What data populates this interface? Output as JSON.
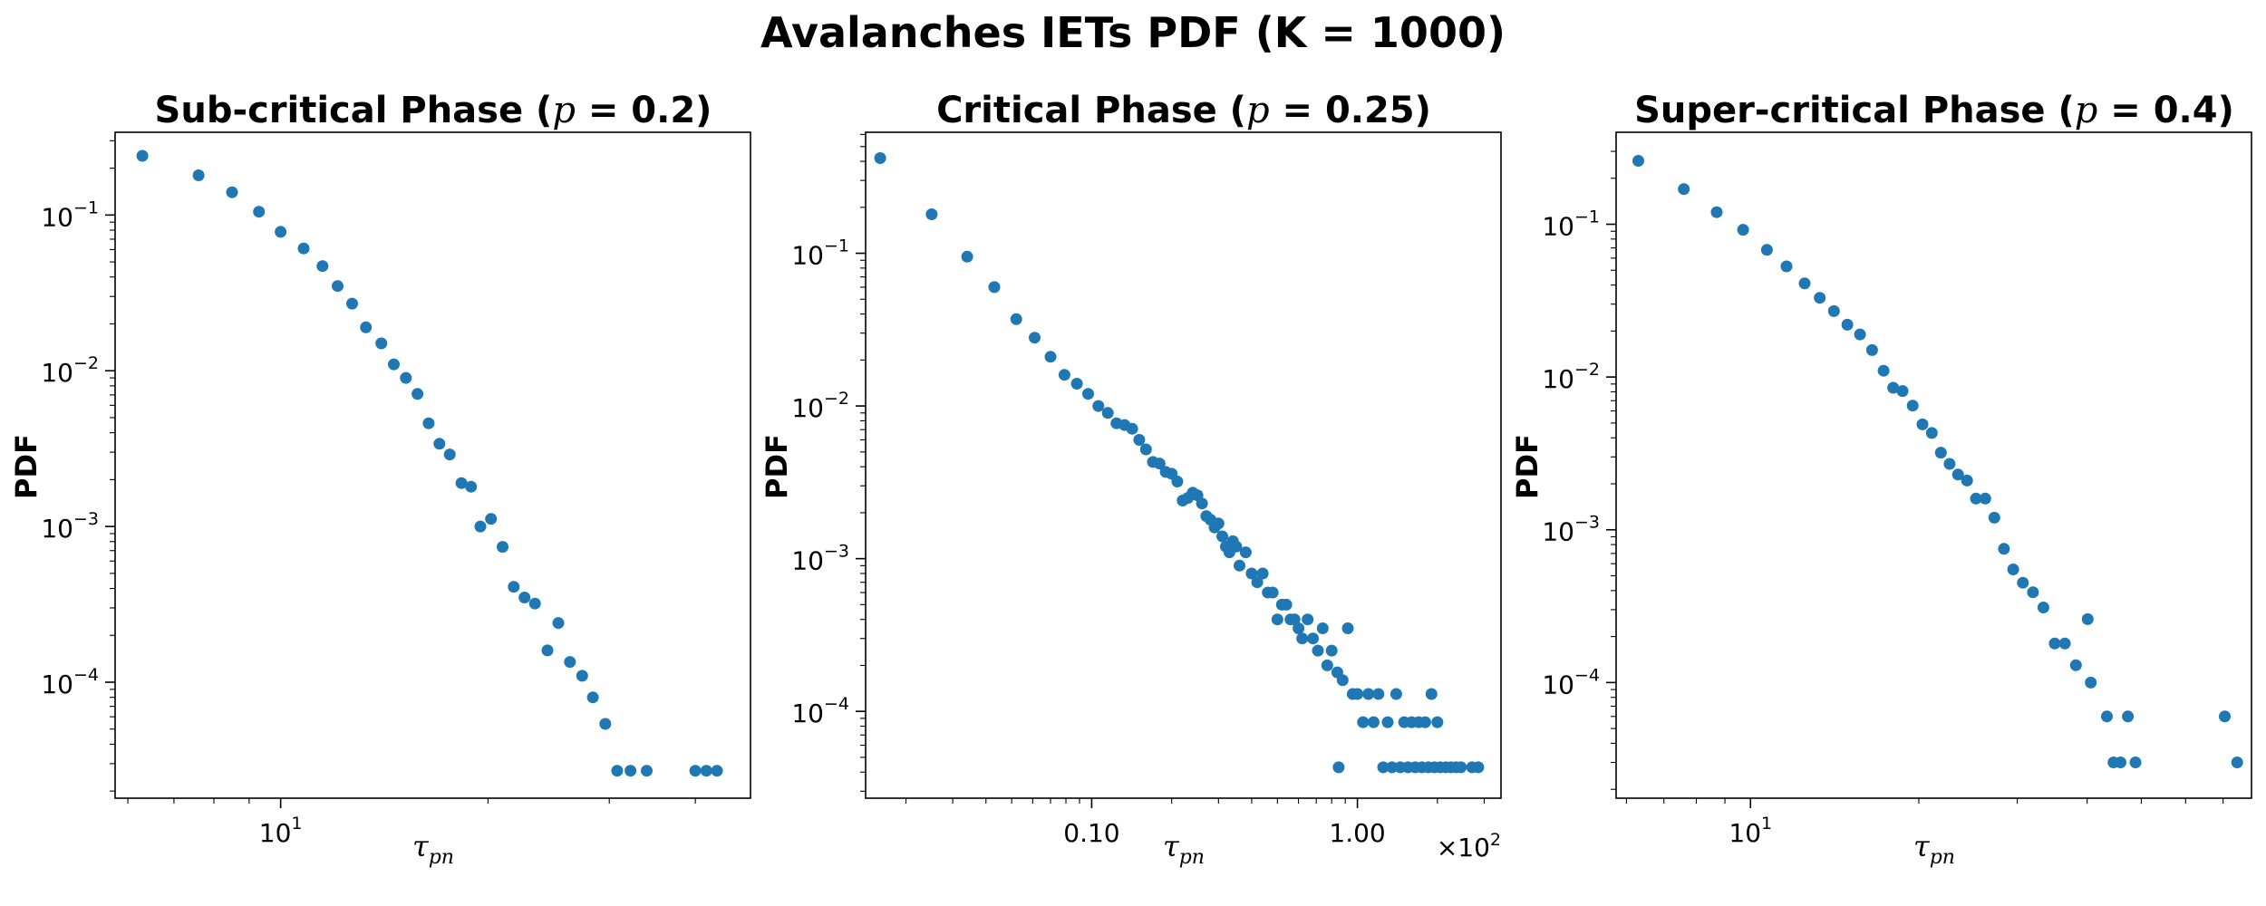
{
  "figure": {
    "suptitle": "Avalanches IETs PDF (K = 1000)"
  },
  "colors": {
    "marker": "#1f77b4",
    "axes": "#000000",
    "background": "#ffffff"
  },
  "chart_data": [
    {
      "type": "scatter",
      "id": "sub",
      "title": {
        "prefix": "Sub-critical Phase (",
        "var": "p",
        "suffix": " = 0.2)"
      },
      "xlabel": {
        "main": "τ",
        "sub": "pn"
      },
      "ylabel": "PDF",
      "xscale": "log",
      "yscale": "log",
      "xlim": [
        5.75,
        48.1
      ],
      "ylim": [
        1.8e-05,
        0.34
      ],
      "xticks": [
        {
          "value": 10,
          "label": {
            "base": "10",
            "exp": "1"
          }
        }
      ],
      "yticks": [
        {
          "value": 0.1,
          "label": {
            "base": "10",
            "exp": "−1"
          }
        },
        {
          "value": 0.01,
          "label": {
            "base": "10",
            "exp": "−2"
          }
        },
        {
          "value": 0.001,
          "label": {
            "base": "10",
            "exp": "−3"
          }
        },
        {
          "value": 0.0001,
          "label": {
            "base": "10",
            "exp": "−4"
          }
        }
      ],
      "x": [
        6.3,
        7.6,
        8.5,
        9.3,
        10,
        10.8,
        11.5,
        12.1,
        12.7,
        13.3,
        14,
        14.6,
        15.2,
        15.8,
        16.4,
        17,
        17.6,
        18.3,
        18.9,
        19.5,
        20.2,
        21,
        21.8,
        22.6,
        23.4,
        24.4,
        25.3,
        26.3,
        27.4,
        28.4,
        29.6,
        30.8,
        32.2,
        34,
        40,
        41.5,
        43
      ],
      "y": [
        0.24,
        0.18,
        0.14,
        0.105,
        0.078,
        0.061,
        0.047,
        0.035,
        0.027,
        0.019,
        0.015,
        0.011,
        0.009,
        0.0071,
        0.0046,
        0.0034,
        0.0029,
        0.0019,
        0.0018,
        0.001,
        0.00112,
        0.00074,
        0.00041,
        0.00035,
        0.00032,
        0.00016,
        0.00024,
        0.000135,
        0.00011,
        8e-05,
        5.4e-05,
        2.7e-05,
        2.7e-05,
        2.7e-05,
        2.7e-05,
        2.7e-05,
        2.7e-05
      ]
    },
    {
      "type": "scatter",
      "id": "crit",
      "title": {
        "prefix": "Critical Phase (",
        "var": "p",
        "suffix": " = 0.25)"
      },
      "xlabel": {
        "main": "τ",
        "sub": "pn"
      },
      "ylabel": "PDF",
      "xscale": "log",
      "yscale": "log",
      "xlim": [
        0.0141,
        3.47
      ],
      "ylim": [
        2.7e-05,
        0.62
      ],
      "offset_text": {
        "base": "×10",
        "exp": "2"
      },
      "xticks": [
        {
          "value": 0.1,
          "label": {
            "base": "0.10",
            "exp": ""
          }
        },
        {
          "value": 1.0,
          "label": {
            "base": "1.00",
            "exp": ""
          }
        }
      ],
      "yticks": [
        {
          "value": 0.1,
          "label": {
            "base": "10",
            "exp": "−1"
          }
        },
        {
          "value": 0.01,
          "label": {
            "base": "10",
            "exp": "−2"
          }
        },
        {
          "value": 0.001,
          "label": {
            "base": "10",
            "exp": "−3"
          }
        },
        {
          "value": 0.0001,
          "label": {
            "base": "10",
            "exp": "−4"
          }
        }
      ],
      "x": [
        0.016,
        0.025,
        0.034,
        0.043,
        0.052,
        0.061,
        0.07,
        0.079,
        0.088,
        0.097,
        0.106,
        0.115,
        0.124,
        0.133,
        0.142,
        0.151,
        0.16,
        0.17,
        0.18,
        0.19,
        0.2,
        0.21,
        0.22,
        0.23,
        0.24,
        0.25,
        0.26,
        0.27,
        0.28,
        0.29,
        0.3,
        0.31,
        0.32,
        0.33,
        0.34,
        0.35,
        0.36,
        0.38,
        0.4,
        0.42,
        0.44,
        0.46,
        0.48,
        0.5,
        0.52,
        0.54,
        0.56,
        0.58,
        0.6,
        0.62,
        0.65,
        0.68,
        0.71,
        0.74,
        0.77,
        0.8,
        0.84,
        0.88,
        0.92,
        0.96,
        1.0,
        1.05,
        1.1,
        1.15,
        1.2,
        1.3,
        1.4,
        1.5,
        1.6,
        1.7,
        1.8,
        1.9,
        2.0,
        0.85,
        1.25,
        1.35,
        1.45,
        1.55,
        1.65,
        1.75,
        1.85,
        1.95,
        2.05,
        2.15,
        2.25,
        2.35,
        2.45,
        2.7,
        2.85
      ],
      "y": [
        0.42,
        0.18,
        0.095,
        0.06,
        0.037,
        0.028,
        0.021,
        0.016,
        0.014,
        0.012,
        0.01,
        0.009,
        0.0077,
        0.0075,
        0.0071,
        0.006,
        0.0052,
        0.0043,
        0.0042,
        0.0037,
        0.0036,
        0.0032,
        0.0024,
        0.0025,
        0.0027,
        0.0026,
        0.0023,
        0.0019,
        0.0018,
        0.0016,
        0.0017,
        0.0014,
        0.0012,
        0.0011,
        0.0013,
        0.0012,
        0.0009,
        0.0011,
        0.0008,
        0.0007,
        0.0008,
        0.0006,
        0.0006,
        0.0004,
        0.0005,
        0.0005,
        0.0004,
        0.0004,
        0.00035,
        0.0003,
        0.0004,
        0.0003,
        0.00025,
        0.00035,
        0.0002,
        0.00025,
        0.00018,
        0.00016,
        0.00035,
        0.00013,
        0.00013,
        8.5e-05,
        0.00013,
        8.5e-05,
        0.00013,
        8.5e-05,
        0.00013,
        8.5e-05,
        8.5e-05,
        8.5e-05,
        8.5e-05,
        0.00013,
        8.5e-05,
        4.3e-05,
        4.3e-05,
        4.3e-05,
        4.3e-05,
        4.3e-05,
        4.3e-05,
        4.3e-05,
        4.3e-05,
        4.3e-05,
        4.3e-05,
        4.3e-05,
        4.3e-05,
        4.3e-05,
        4.3e-05,
        4.3e-05,
        4.3e-05
      ]
    },
    {
      "type": "scatter",
      "id": "super",
      "title": {
        "prefix": "Super-critical Phase (",
        "var": "p",
        "suffix": " = 0.4)"
      },
      "xlabel": {
        "main": "τ",
        "sub": "pn"
      },
      "ylabel": "PDF",
      "xscale": "log",
      "yscale": "log",
      "xlim": [
        5.75,
        78.7
      ],
      "ylim": [
        1.75e-05,
        0.4
      ],
      "xticks": [
        {
          "value": 10,
          "label": {
            "base": "10",
            "exp": "1"
          }
        }
      ],
      "yticks": [
        {
          "value": 0.1,
          "label": {
            "base": "10",
            "exp": "−1"
          }
        },
        {
          "value": 0.01,
          "label": {
            "base": "10",
            "exp": "−2"
          }
        },
        {
          "value": 0.001,
          "label": {
            "base": "10",
            "exp": "−3"
          }
        },
        {
          "value": 0.0001,
          "label": {
            "base": "10",
            "exp": "−4"
          }
        }
      ],
      "x": [
        6.3,
        7.6,
        8.7,
        9.7,
        10.7,
        11.6,
        12.5,
        13.3,
        14.1,
        14.9,
        15.7,
        16.5,
        17.3,
        18,
        18.7,
        19.5,
        20.3,
        21.1,
        21.9,
        22.7,
        23.5,
        24.4,
        25.3,
        26.3,
        27.3,
        28.4,
        29.5,
        30.7,
        32,
        33.4,
        35,
        36.5,
        38.2,
        40.1,
        40.6,
        43.4,
        44.6,
        45.9,
        47.3,
        48.8,
        70.5,
        74.2
      ],
      "y": [
        0.26,
        0.17,
        0.12,
        0.092,
        0.068,
        0.053,
        0.041,
        0.033,
        0.027,
        0.022,
        0.019,
        0.015,
        0.011,
        0.0085,
        0.0081,
        0.0065,
        0.0049,
        0.0043,
        0.0032,
        0.0027,
        0.0023,
        0.0021,
        0.0016,
        0.0016,
        0.0012,
        0.00075,
        0.00055,
        0.00045,
        0.00039,
        0.00031,
        0.00018,
        0.00018,
        0.00013,
        0.00026,
        0.0001,
        6e-05,
        3e-05,
        3e-05,
        6e-05,
        3e-05,
        6e-05,
        3e-05
      ]
    }
  ]
}
